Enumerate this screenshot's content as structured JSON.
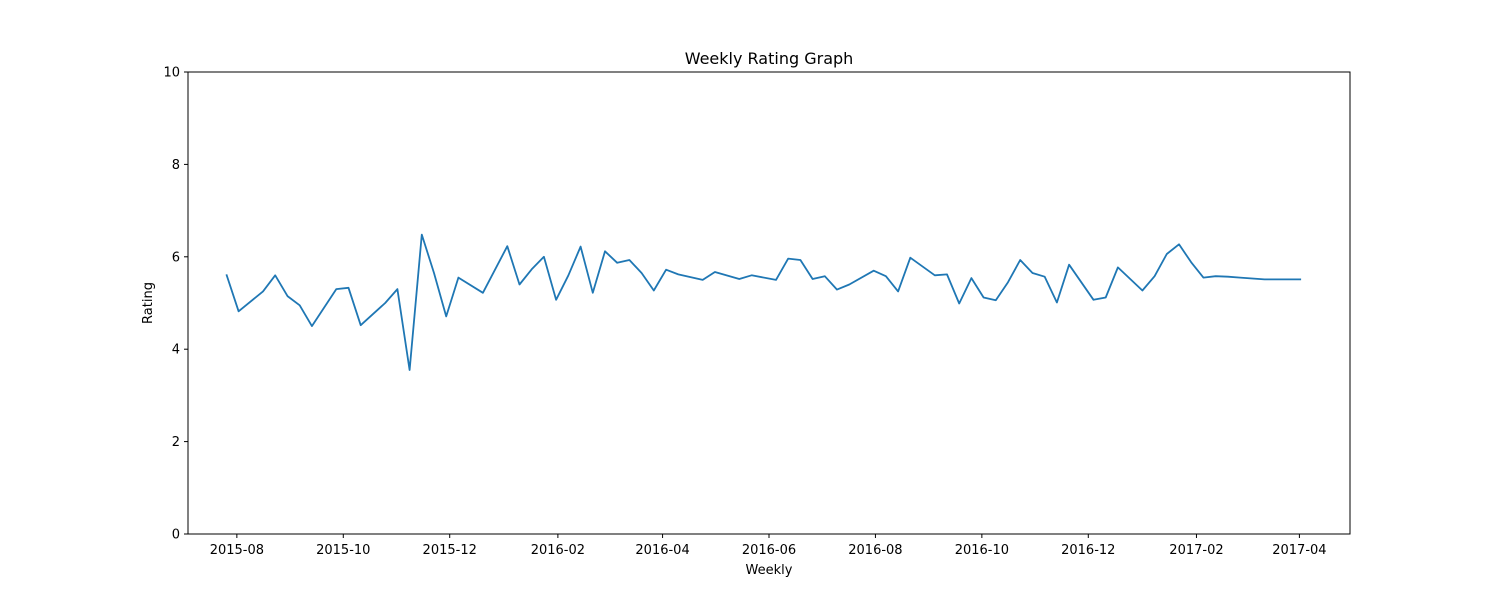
{
  "chart_data": {
    "type": "line",
    "title": "Weekly Rating Graph",
    "xlabel": "Weekly",
    "ylabel": "Rating",
    "xlim": [
      "2015-07-04",
      "2017-04-30"
    ],
    "ylim": [
      0,
      10
    ],
    "yticks": [
      0,
      2,
      4,
      6,
      8,
      10
    ],
    "xticks": [
      "2015-08",
      "2015-10",
      "2015-12",
      "2016-02",
      "2016-04",
      "2016-06",
      "2016-08",
      "2016-10",
      "2016-12",
      "2017-02",
      "2017-04"
    ],
    "grid": false,
    "line_color": "#1f77b4",
    "series": [
      {
        "x": [
          "2015-07-26",
          "2015-08-02",
          "2015-08-16",
          "2015-08-23",
          "2015-08-30",
          "2015-09-06",
          "2015-09-13",
          "2015-09-27",
          "2015-10-04",
          "2015-10-11",
          "2015-10-25",
          "2015-11-01",
          "2015-11-08",
          "2015-11-15",
          "2015-11-22",
          "2015-11-29",
          "2015-12-06",
          "2015-12-20",
          "2016-01-03",
          "2016-01-10",
          "2016-01-17",
          "2016-01-24",
          "2016-01-31",
          "2016-02-07",
          "2016-02-14",
          "2016-02-21",
          "2016-02-28",
          "2016-03-06",
          "2016-03-13",
          "2016-03-20",
          "2016-03-27",
          "2016-04-03",
          "2016-04-10",
          "2016-04-24",
          "2016-05-01",
          "2016-05-15",
          "2016-05-22",
          "2016-06-05",
          "2016-06-12",
          "2016-06-19",
          "2016-06-26",
          "2016-07-03",
          "2016-07-10",
          "2016-07-17",
          "2016-07-31",
          "2016-08-07",
          "2016-08-14",
          "2016-08-21",
          "2016-09-04",
          "2016-09-11",
          "2016-09-18",
          "2016-09-25",
          "2016-10-02",
          "2016-10-09",
          "2016-10-16",
          "2016-10-23",
          "2016-10-30",
          "2016-11-06",
          "2016-11-13",
          "2016-11-20",
          "2016-12-04",
          "2016-12-11",
          "2016-12-18",
          "2017-01-01",
          "2017-01-08",
          "2017-01-15",
          "2017-01-22",
          "2017-01-29",
          "2017-02-05",
          "2017-02-12",
          "2017-02-19",
          "2017-02-26",
          "2017-03-05",
          "2017-03-12",
          "2017-04-02"
        ],
        "y": [
          5.62,
          4.82,
          5.25,
          5.6,
          5.15,
          4.95,
          4.5,
          5.3,
          5.33,
          4.52,
          5.0,
          5.3,
          3.55,
          6.48,
          5.65,
          4.71,
          5.55,
          5.22,
          6.23,
          5.4,
          5.73,
          6.0,
          5.07,
          5.6,
          6.22,
          5.22,
          6.12,
          5.87,
          5.93,
          5.65,
          5.27,
          5.72,
          5.62,
          5.5,
          5.67,
          5.52,
          5.6,
          5.5,
          5.96,
          5.93,
          5.52,
          5.58,
          5.29,
          5.4,
          5.7,
          5.58,
          5.25,
          5.98,
          5.6,
          5.62,
          4.99,
          5.54,
          5.12,
          5.06,
          5.45,
          5.93,
          5.65,
          5.57,
          5.01,
          5.83,
          5.07,
          5.12,
          5.77,
          5.27,
          5.58,
          6.06,
          6.27,
          5.88,
          5.55,
          5.58,
          5.57,
          5.55,
          5.53,
          5.51,
          5.51
        ]
      }
    ]
  }
}
